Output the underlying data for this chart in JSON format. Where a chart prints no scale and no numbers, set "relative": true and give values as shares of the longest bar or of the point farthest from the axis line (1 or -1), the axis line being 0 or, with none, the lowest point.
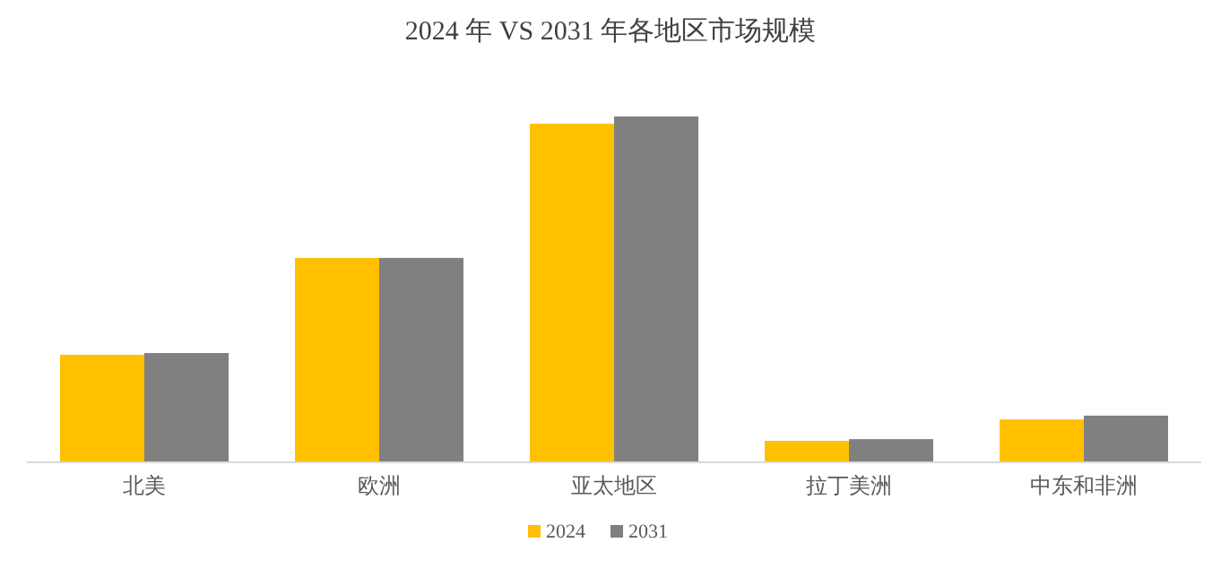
{
  "chart_data": {
    "type": "bar",
    "title": "2024 年 VS 2031 年各地区市场规模",
    "relative": true,
    "legend": "bottom",
    "categories": [
      "北美",
      "欧洲",
      "亚太地区",
      "拉丁美洲",
      "中东和非洲"
    ],
    "series": [
      {
        "name": "2024",
        "color": "#ffc000",
        "values": [
          0.311,
          0.591,
          0.979,
          0.062,
          0.124
        ]
      },
      {
        "name": "2031",
        "color": "#808080",
        "values": [
          0.316,
          0.591,
          1,
          0.067,
          0.135
        ]
      }
    ]
  }
}
